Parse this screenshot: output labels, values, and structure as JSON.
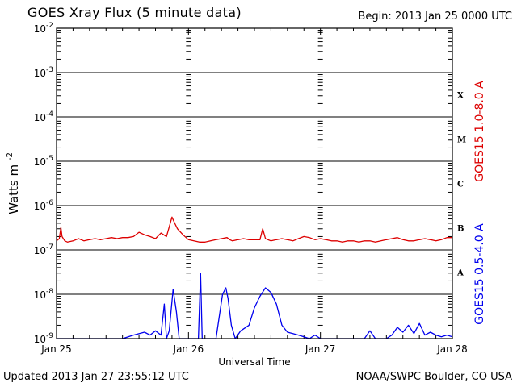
{
  "header": {
    "title": "GOES Xray Flux (5 minute data)",
    "begin": "Begin:  2013 Jan 25 0000 UTC"
  },
  "footer": {
    "updated": "Updated 2013 Jan 27 23:55:12 UTC",
    "credit": "NOAA/SWPC Boulder, CO USA"
  },
  "colors": {
    "long_channel": "#dd0000",
    "short_channel": "#0000ee",
    "grid": "#000000"
  },
  "chart_data": {
    "type": "line",
    "title": "GOES Xray Flux (5 minute data)",
    "xlabel": "Universal Time",
    "ylabel": "Watts m",
    "ylabel_superscript": "-2",
    "yscale": "log",
    "ylim": [
      1e-09,
      0.01
    ],
    "y_ticks": [
      {
        "base": "10",
        "exp": "-9"
      },
      {
        "base": "10",
        "exp": "-8"
      },
      {
        "base": "10",
        "exp": "-7"
      },
      {
        "base": "10",
        "exp": "-6"
      },
      {
        "base": "10",
        "exp": "-5"
      },
      {
        "base": "10",
        "exp": "-4"
      },
      {
        "base": "10",
        "exp": "-3"
      },
      {
        "base": "10",
        "exp": "-2"
      }
    ],
    "x_ticks": [
      "Jan 25",
      "Jan 26",
      "Jan 27",
      "Jan 28"
    ],
    "xlim_hours": [
      0,
      72
    ],
    "flare_classes": [
      {
        "label": "X",
        "log_center": -3.5
      },
      {
        "label": "M",
        "log_center": -4.5
      },
      {
        "label": "C",
        "log_center": -5.5
      },
      {
        "label": "B",
        "log_center": -6.5
      },
      {
        "label": "A",
        "log_center": -7.5
      }
    ],
    "grid": true,
    "series": [
      {
        "name": "GOES15 1.0-8.0 A",
        "points": [
          [
            0,
            1.6e-07
          ],
          [
            0.5,
            1.8e-07
          ],
          [
            0.8,
            3.2e-07
          ],
          [
            1.0,
            2e-07
          ],
          [
            1.5,
            1.6e-07
          ],
          [
            2,
            1.5e-07
          ],
          [
            3,
            1.6e-07
          ],
          [
            4,
            1.8e-07
          ],
          [
            5,
            1.6e-07
          ],
          [
            6,
            1.7e-07
          ],
          [
            7,
            1.8e-07
          ],
          [
            8,
            1.7e-07
          ],
          [
            9,
            1.8e-07
          ],
          [
            10,
            1.9e-07
          ],
          [
            11,
            1.8e-07
          ],
          [
            12,
            1.9e-07
          ],
          [
            13,
            1.9e-07
          ],
          [
            14,
            2e-07
          ],
          [
            15,
            2.5e-07
          ],
          [
            16,
            2.2e-07
          ],
          [
            17,
            2e-07
          ],
          [
            18,
            1.8e-07
          ],
          [
            19,
            2.4e-07
          ],
          [
            20,
            2e-07
          ],
          [
            21,
            5.5e-07
          ],
          [
            21.5,
            4e-07
          ],
          [
            22,
            3e-07
          ],
          [
            23,
            2.2e-07
          ],
          [
            24,
            1.7e-07
          ],
          [
            25,
            1.6e-07
          ],
          [
            26,
            1.5e-07
          ],
          [
            27,
            1.5e-07
          ],
          [
            28,
            1.6e-07
          ],
          [
            29,
            1.7e-07
          ],
          [
            30,
            1.8e-07
          ],
          [
            31,
            1.9e-07
          ],
          [
            31.5,
            1.7e-07
          ],
          [
            32,
            1.6e-07
          ],
          [
            33,
            1.7e-07
          ],
          [
            34,
            1.8e-07
          ],
          [
            35,
            1.7e-07
          ],
          [
            36,
            1.7e-07
          ],
          [
            37,
            1.7e-07
          ],
          [
            37.5,
            3e-07
          ],
          [
            38,
            1.8e-07
          ],
          [
            39,
            1.6e-07
          ],
          [
            40,
            1.7e-07
          ],
          [
            41,
            1.8e-07
          ],
          [
            42,
            1.7e-07
          ],
          [
            43,
            1.6e-07
          ],
          [
            44,
            1.8e-07
          ],
          [
            45,
            2e-07
          ],
          [
            46,
            1.9e-07
          ],
          [
            47,
            1.7e-07
          ],
          [
            48,
            1.8e-07
          ],
          [
            49,
            1.7e-07
          ],
          [
            50,
            1.6e-07
          ],
          [
            51,
            1.6e-07
          ],
          [
            52,
            1.5e-07
          ],
          [
            53,
            1.6e-07
          ],
          [
            54,
            1.6e-07
          ],
          [
            55,
            1.5e-07
          ],
          [
            56,
            1.6e-07
          ],
          [
            57,
            1.6e-07
          ],
          [
            58,
            1.5e-07
          ],
          [
            59,
            1.6e-07
          ],
          [
            60,
            1.7e-07
          ],
          [
            61,
            1.8e-07
          ],
          [
            62,
            1.9e-07
          ],
          [
            63,
            1.7e-07
          ],
          [
            64,
            1.6e-07
          ],
          [
            65,
            1.6e-07
          ],
          [
            66,
            1.7e-07
          ],
          [
            67,
            1.8e-07
          ],
          [
            68,
            1.7e-07
          ],
          [
            69,
            1.6e-07
          ],
          [
            70,
            1.7e-07
          ],
          [
            71,
            1.9e-07
          ],
          [
            72,
            1.9e-07
          ]
        ]
      },
      {
        "name": "GOES15 0.5-4.0 A",
        "points": [
          [
            0,
            1e-09
          ],
          [
            3,
            1e-09
          ],
          [
            6,
            1e-09
          ],
          [
            9,
            1e-09
          ],
          [
            12,
            1e-09
          ],
          [
            14,
            1.2e-09
          ],
          [
            16,
            1.4e-09
          ],
          [
            17,
            1.2e-09
          ],
          [
            18,
            1.5e-09
          ],
          [
            19,
            1.2e-09
          ],
          [
            19.6,
            6e-09
          ],
          [
            20,
            1e-09
          ],
          [
            20.5,
            1.5e-09
          ],
          [
            21.2,
            1.3e-08
          ],
          [
            21.8,
            4e-09
          ],
          [
            22.3,
            1e-09
          ],
          [
            25.8,
            1e-09
          ],
          [
            26.2,
            3e-08
          ],
          [
            26.5,
            1e-09
          ],
          [
            29,
            1e-09
          ],
          [
            30.2,
            1e-08
          ],
          [
            30.8,
            1.4e-08
          ],
          [
            31.2,
            8e-09
          ],
          [
            31.8,
            2e-09
          ],
          [
            32.5,
            1e-09
          ],
          [
            33.5,
            1.5e-09
          ],
          [
            35,
            2e-09
          ],
          [
            36,
            5e-09
          ],
          [
            37,
            9e-09
          ],
          [
            38,
            1.4e-08
          ],
          [
            39,
            1.1e-08
          ],
          [
            40,
            6e-09
          ],
          [
            41,
            2e-09
          ],
          [
            42,
            1.4e-09
          ],
          [
            43,
            1.3e-09
          ],
          [
            44,
            1.2e-09
          ],
          [
            45,
            1.1e-09
          ],
          [
            46,
            1e-09
          ],
          [
            47,
            1.2e-09
          ],
          [
            48,
            1e-09
          ],
          [
            50,
            1e-09
          ],
          [
            52,
            1e-09
          ],
          [
            54,
            1e-09
          ],
          [
            56,
            1e-09
          ],
          [
            57,
            1.5e-09
          ],
          [
            58,
            1e-09
          ],
          [
            60,
            1e-09
          ],
          [
            61,
            1.2e-09
          ],
          [
            62,
            1.8e-09
          ],
          [
            63,
            1.4e-09
          ],
          [
            64,
            2e-09
          ],
          [
            65,
            1.3e-09
          ],
          [
            66,
            2.2e-09
          ],
          [
            67,
            1.2e-09
          ],
          [
            68,
            1.4e-09
          ],
          [
            69,
            1.2e-09
          ],
          [
            70,
            1.1e-09
          ],
          [
            71,
            1.2e-09
          ],
          [
            72,
            1.1e-09
          ]
        ]
      }
    ]
  }
}
